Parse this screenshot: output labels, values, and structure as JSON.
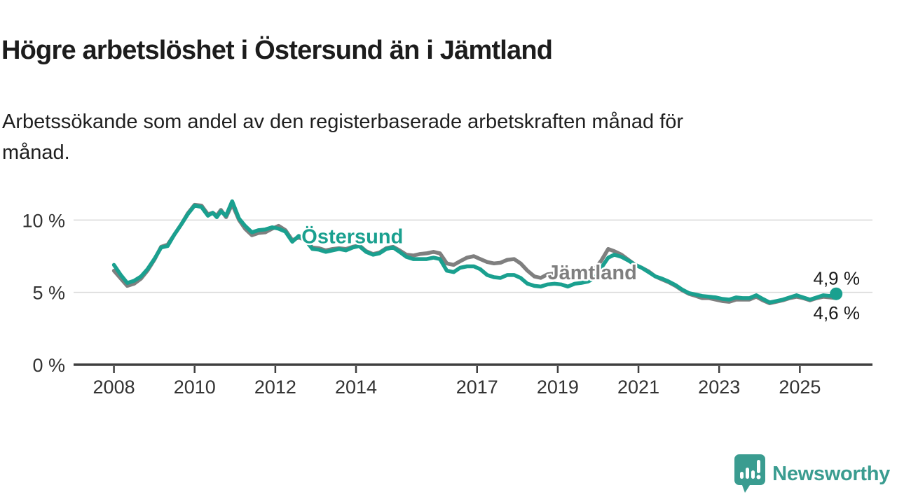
{
  "header": {
    "title": "Högre arbetslöshet i Östersund än i Jämtland",
    "subtitle": "Arbetssökande som andel av den registerbaserade arbetskraften månad för månad."
  },
  "footer": {
    "brand": "Newsworthy"
  },
  "colors": {
    "ostersund": "#1aa08f",
    "jamtland": "#7f7f7f",
    "axis": "#3f3f3f",
    "grid": "#d9d9d9",
    "tick_text": "#333333",
    "value_text": "#1a1a1a",
    "brand": "#3a9c90"
  },
  "chart_data": {
    "type": "line",
    "title": "Högre arbetslöshet i Östersund än i Jämtland",
    "subtitle": "Arbetssökande som andel av den registerbaserade arbetskraften månad för månad.",
    "xlabel": "",
    "ylabel": "",
    "x_unit": "decimal year, monthly data 2008 - late 2025",
    "xlim": [
      2007,
      2026.8
    ],
    "ylim": [
      0,
      12
    ],
    "grid": "horizontal gridlines at 5 % and 10 %, legend as inline labels",
    "x_ticks": [
      2008,
      2010,
      2012,
      2014,
      2017,
      2019,
      2021,
      2023,
      2025
    ],
    "y_ticks": [
      {
        "value": 0,
        "label": "0 %"
      },
      {
        "value": 5,
        "label": "5 %"
      },
      {
        "value": 10,
        "label": "10 %"
      }
    ],
    "series": [
      {
        "name": "Jämtland",
        "color": "#7f7f7f",
        "label": {
          "text": "Jämtland",
          "x": 2018.75,
          "y": 5.9
        },
        "end_label": {
          "text": "4,6 %",
          "side": "below"
        },
        "end_dot": false,
        "points": [
          [
            2008.0,
            6.5
          ],
          [
            2008.17,
            5.95
          ],
          [
            2008.33,
            5.45
          ],
          [
            2008.5,
            5.6
          ],
          [
            2008.67,
            5.95
          ],
          [
            2008.83,
            6.5
          ],
          [
            2009.0,
            7.25
          ],
          [
            2009.17,
            8.15
          ],
          [
            2009.33,
            8.3
          ],
          [
            2009.5,
            9.0
          ],
          [
            2009.67,
            9.7
          ],
          [
            2009.83,
            10.45
          ],
          [
            2010.0,
            11.05
          ],
          [
            2010.17,
            11.0
          ],
          [
            2010.33,
            10.4
          ],
          [
            2010.45,
            10.5
          ],
          [
            2010.55,
            10.3
          ],
          [
            2010.65,
            10.7
          ],
          [
            2010.78,
            10.2
          ],
          [
            2010.93,
            11.1
          ],
          [
            2011.1,
            10.0
          ],
          [
            2011.25,
            9.4
          ],
          [
            2011.42,
            8.95
          ],
          [
            2011.58,
            9.1
          ],
          [
            2011.75,
            9.15
          ],
          [
            2011.92,
            9.4
          ],
          [
            2012.08,
            9.6
          ],
          [
            2012.25,
            9.3
          ],
          [
            2012.42,
            8.6
          ],
          [
            2012.58,
            8.8
          ],
          [
            2012.75,
            8.6
          ],
          [
            2012.92,
            8.1
          ],
          [
            2013.08,
            8.05
          ],
          [
            2013.25,
            7.9
          ],
          [
            2013.42,
            8.0
          ],
          [
            2013.58,
            8.05
          ],
          [
            2013.75,
            8.0
          ],
          [
            2013.92,
            8.15
          ],
          [
            2014.08,
            8.25
          ],
          [
            2014.25,
            7.85
          ],
          [
            2014.42,
            7.65
          ],
          [
            2014.58,
            7.75
          ],
          [
            2014.75,
            8.05
          ],
          [
            2014.92,
            8.15
          ],
          [
            2015.08,
            7.9
          ],
          [
            2015.25,
            7.6
          ],
          [
            2015.42,
            7.55
          ],
          [
            2015.58,
            7.65
          ],
          [
            2015.75,
            7.7
          ],
          [
            2015.92,
            7.8
          ],
          [
            2016.08,
            7.7
          ],
          [
            2016.25,
            7.0
          ],
          [
            2016.42,
            6.9
          ],
          [
            2016.58,
            7.15
          ],
          [
            2016.75,
            7.4
          ],
          [
            2016.92,
            7.5
          ],
          [
            2017.08,
            7.3
          ],
          [
            2017.25,
            7.1
          ],
          [
            2017.42,
            7.0
          ],
          [
            2017.58,
            7.05
          ],
          [
            2017.75,
            7.25
          ],
          [
            2017.92,
            7.3
          ],
          [
            2018.08,
            7.0
          ],
          [
            2018.25,
            6.5
          ],
          [
            2018.42,
            6.1
          ],
          [
            2018.58,
            6.0
          ],
          [
            2018.75,
            6.25
          ],
          [
            2018.92,
            6.3
          ],
          [
            2019.08,
            6.1
          ],
          [
            2019.25,
            6.0
          ],
          [
            2019.42,
            6.15
          ],
          [
            2019.58,
            6.2
          ],
          [
            2019.75,
            6.35
          ],
          [
            2019.92,
            6.6
          ],
          [
            2020.08,
            7.2
          ],
          [
            2020.25,
            8.0
          ],
          [
            2020.4,
            7.85
          ],
          [
            2020.58,
            7.6
          ],
          [
            2020.75,
            7.25
          ],
          [
            2020.92,
            6.9
          ],
          [
            2021.08,
            6.7
          ],
          [
            2021.25,
            6.45
          ],
          [
            2021.42,
            6.1
          ],
          [
            2021.58,
            5.9
          ],
          [
            2021.75,
            5.7
          ],
          [
            2021.92,
            5.45
          ],
          [
            2022.08,
            5.15
          ],
          [
            2022.25,
            4.9
          ],
          [
            2022.42,
            4.75
          ],
          [
            2022.58,
            4.6
          ],
          [
            2022.75,
            4.6
          ],
          [
            2022.92,
            4.5
          ],
          [
            2023.08,
            4.4
          ],
          [
            2023.25,
            4.35
          ],
          [
            2023.42,
            4.5
          ],
          [
            2023.58,
            4.5
          ],
          [
            2023.75,
            4.5
          ],
          [
            2023.92,
            4.7
          ],
          [
            2024.08,
            4.45
          ],
          [
            2024.25,
            4.25
          ],
          [
            2024.42,
            4.35
          ],
          [
            2024.58,
            4.45
          ],
          [
            2024.75,
            4.6
          ],
          [
            2024.92,
            4.7
          ],
          [
            2025.08,
            4.6
          ],
          [
            2025.25,
            4.45
          ],
          [
            2025.42,
            4.6
          ],
          [
            2025.58,
            4.7
          ],
          [
            2025.75,
            4.65
          ],
          [
            2025.9,
            4.6
          ]
        ]
      },
      {
        "name": "Östersund",
        "color": "#1aa08f",
        "label": {
          "text": "Östersund",
          "x": 2012.65,
          "y": 8.4
        },
        "end_label": {
          "text": "4,9 %",
          "side": "above"
        },
        "end_dot": true,
        "points": [
          [
            2008.0,
            6.9
          ],
          [
            2008.17,
            6.2
          ],
          [
            2008.33,
            5.65
          ],
          [
            2008.5,
            5.8
          ],
          [
            2008.67,
            6.1
          ],
          [
            2008.83,
            6.6
          ],
          [
            2009.0,
            7.3
          ],
          [
            2009.17,
            8.1
          ],
          [
            2009.33,
            8.2
          ],
          [
            2009.5,
            9.0
          ],
          [
            2009.67,
            9.7
          ],
          [
            2009.83,
            10.4
          ],
          [
            2010.0,
            11.0
          ],
          [
            2010.17,
            10.9
          ],
          [
            2010.33,
            10.3
          ],
          [
            2010.45,
            10.5
          ],
          [
            2010.55,
            10.2
          ],
          [
            2010.65,
            10.6
          ],
          [
            2010.78,
            10.3
          ],
          [
            2010.93,
            11.3
          ],
          [
            2011.1,
            10.1
          ],
          [
            2011.25,
            9.6
          ],
          [
            2011.42,
            9.15
          ],
          [
            2011.58,
            9.3
          ],
          [
            2011.75,
            9.35
          ],
          [
            2011.92,
            9.5
          ],
          [
            2012.08,
            9.4
          ],
          [
            2012.25,
            9.2
          ],
          [
            2012.42,
            8.5
          ],
          [
            2012.58,
            8.9
          ],
          [
            2012.75,
            8.6
          ],
          [
            2012.92,
            8.0
          ],
          [
            2013.08,
            7.95
          ],
          [
            2013.25,
            7.8
          ],
          [
            2013.42,
            7.9
          ],
          [
            2013.58,
            8.0
          ],
          [
            2013.75,
            7.9
          ],
          [
            2013.92,
            8.1
          ],
          [
            2014.08,
            8.2
          ],
          [
            2014.25,
            7.8
          ],
          [
            2014.42,
            7.6
          ],
          [
            2014.58,
            7.7
          ],
          [
            2014.75,
            8.0
          ],
          [
            2014.92,
            8.1
          ],
          [
            2015.08,
            7.8
          ],
          [
            2015.25,
            7.45
          ],
          [
            2015.42,
            7.3
          ],
          [
            2015.58,
            7.3
          ],
          [
            2015.75,
            7.3
          ],
          [
            2015.92,
            7.4
          ],
          [
            2016.08,
            7.3
          ],
          [
            2016.25,
            6.5
          ],
          [
            2016.42,
            6.4
          ],
          [
            2016.58,
            6.7
          ],
          [
            2016.75,
            6.8
          ],
          [
            2016.92,
            6.8
          ],
          [
            2017.08,
            6.6
          ],
          [
            2017.25,
            6.2
          ],
          [
            2017.42,
            6.05
          ],
          [
            2017.58,
            6.0
          ],
          [
            2017.75,
            6.2
          ],
          [
            2017.92,
            6.2
          ],
          [
            2018.08,
            6.0
          ],
          [
            2018.25,
            5.6
          ],
          [
            2018.42,
            5.45
          ],
          [
            2018.58,
            5.4
          ],
          [
            2018.75,
            5.55
          ],
          [
            2018.92,
            5.6
          ],
          [
            2019.08,
            5.55
          ],
          [
            2019.25,
            5.4
          ],
          [
            2019.42,
            5.6
          ],
          [
            2019.58,
            5.65
          ],
          [
            2019.75,
            5.75
          ],
          [
            2019.92,
            6.0
          ],
          [
            2020.08,
            6.7
          ],
          [
            2020.25,
            7.4
          ],
          [
            2020.4,
            7.6
          ],
          [
            2020.58,
            7.45
          ],
          [
            2020.75,
            7.2
          ],
          [
            2020.92,
            6.9
          ],
          [
            2021.08,
            6.7
          ],
          [
            2021.25,
            6.4
          ],
          [
            2021.42,
            6.1
          ],
          [
            2021.58,
            5.95
          ],
          [
            2021.75,
            5.75
          ],
          [
            2021.92,
            5.5
          ],
          [
            2022.08,
            5.2
          ],
          [
            2022.25,
            4.95
          ],
          [
            2022.42,
            4.85
          ],
          [
            2022.58,
            4.75
          ],
          [
            2022.75,
            4.7
          ],
          [
            2022.92,
            4.65
          ],
          [
            2023.08,
            4.55
          ],
          [
            2023.25,
            4.5
          ],
          [
            2023.42,
            4.65
          ],
          [
            2023.58,
            4.6
          ],
          [
            2023.75,
            4.6
          ],
          [
            2023.92,
            4.8
          ],
          [
            2024.08,
            4.55
          ],
          [
            2024.25,
            4.3
          ],
          [
            2024.42,
            4.4
          ],
          [
            2024.58,
            4.5
          ],
          [
            2024.75,
            4.65
          ],
          [
            2024.92,
            4.8
          ],
          [
            2025.08,
            4.65
          ],
          [
            2025.25,
            4.5
          ],
          [
            2025.42,
            4.65
          ],
          [
            2025.58,
            4.8
          ],
          [
            2025.75,
            4.75
          ],
          [
            2025.9,
            4.9
          ]
        ]
      }
    ]
  }
}
